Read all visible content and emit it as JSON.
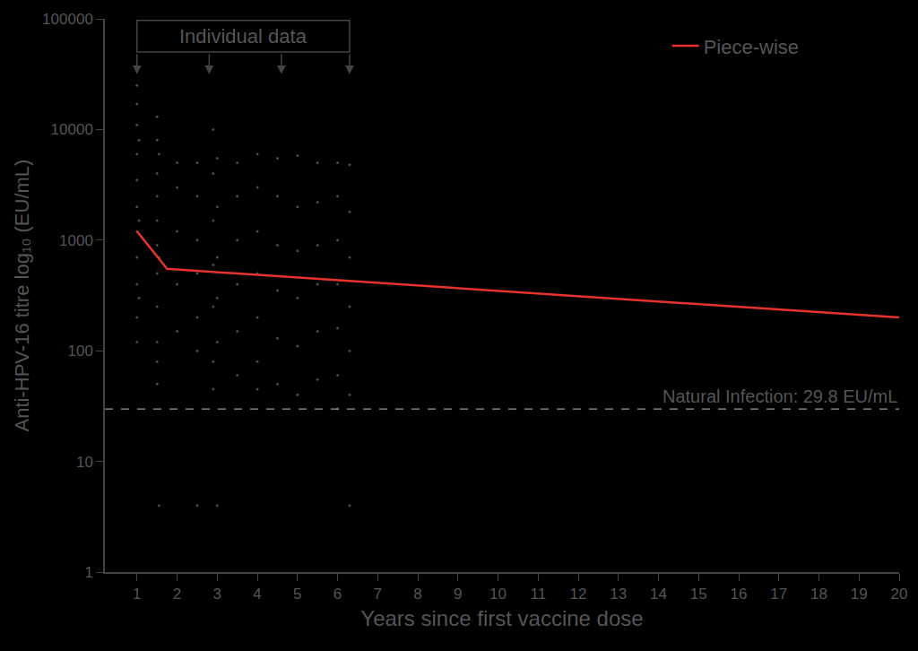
{
  "chart_data": {
    "type": "scatter",
    "x_label": "Years since first vaccine dose",
    "y_label": "Anti-HPV-16 titre log₁₀ (EU/mL)",
    "log": "y",
    "grid": false,
    "legend": "top right",
    "xlim": [
      0.2,
      20
    ],
    "xticks": [
      1,
      2,
      3,
      4,
      5,
      6,
      7,
      8,
      9,
      10,
      11,
      12,
      13,
      14,
      15,
      16,
      17,
      18,
      19,
      20
    ],
    "ylim": [
      1,
      100000
    ],
    "yticks": [
      1,
      10,
      100,
      1000,
      10000,
      100000
    ],
    "series": [
      {
        "type": "scatter",
        "marker": "circle",
        "color": "#4a4a4a",
        "x": [
          1,
          1,
          1,
          1,
          1,
          1,
          1,
          1,
          1,
          1,
          1,
          1.05,
          1.05,
          1.05,
          1.5,
          1.5,
          1.5,
          1.5,
          1.5,
          1.5,
          1.5,
          1.5,
          1.5,
          1.5,
          1.5,
          1.55,
          1.55,
          1.55,
          2,
          2,
          2,
          2,
          2,
          2.5,
          2.5,
          2.5,
          2.5,
          2.5,
          2.5,
          2.5,
          2.9,
          2.9,
          2.9,
          2.9,
          2.9,
          2.9,
          2.9,
          3,
          3,
          3,
          3,
          3,
          3,
          3.5,
          3.5,
          3.5,
          3.5,
          3.5,
          3.5,
          4,
          4,
          4,
          4,
          4,
          4,
          4,
          4.5,
          4.5,
          4.5,
          4.5,
          4.5,
          4.5,
          5,
          5,
          5,
          5,
          5,
          5,
          5.5,
          5.5,
          5.5,
          5.5,
          5.5,
          5.5,
          6,
          6,
          6,
          6,
          6,
          6,
          6,
          6.3,
          6.3,
          6.3,
          6.3,
          6.3,
          6.3,
          6.3
        ],
        "values": [
          25000,
          17000,
          11000,
          6000,
          3500,
          2000,
          1200,
          700,
          400,
          200,
          120,
          8000,
          1500,
          300,
          13000,
          8000,
          4000,
          2500,
          1500,
          900,
          500,
          250,
          120,
          80,
          50,
          6000,
          700,
          4,
          5000,
          3000,
          1200,
          400,
          150,
          5000,
          2500,
          1000,
          500,
          200,
          100,
          4,
          10000,
          4000,
          1500,
          600,
          250,
          80,
          45,
          5500,
          2000,
          700,
          300,
          120,
          4,
          5000,
          2500,
          1000,
          400,
          150,
          60,
          6000,
          3000,
          1200,
          500,
          200,
          80,
          45,
          5500,
          2500,
          900,
          350,
          130,
          50,
          5800,
          2000,
          800,
          300,
          110,
          40,
          5000,
          2200,
          900,
          400,
          150,
          55,
          5000,
          2500,
          1000,
          400,
          160,
          60,
          30,
          4800,
          1800,
          700,
          250,
          100,
          40,
          4
        ]
      },
      {
        "name": "Piece-wise",
        "type": "line",
        "line_style": "solid",
        "color": "#e8322e",
        "x": [
          1,
          1.75,
          20
        ],
        "values": [
          1200,
          550,
          200
        ]
      }
    ],
    "reference_lines": [
      {
        "y": 29.8,
        "label": "Natural Infection: 29.8 EU/mL",
        "line_style": "dashed",
        "color": "#9a9a9a"
      }
    ],
    "annotations": [
      {
        "text": "Individual data",
        "arrows_x": [
          1,
          2.8,
          4.6,
          6.3
        ]
      }
    ]
  }
}
